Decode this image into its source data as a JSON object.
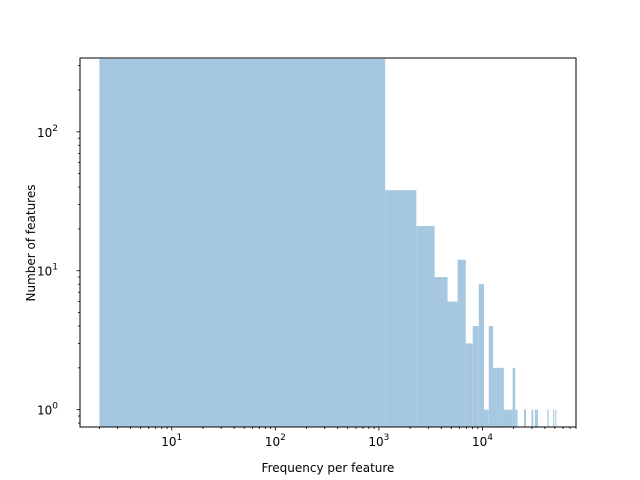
{
  "chart_data": {
    "type": "bar",
    "title": "",
    "xlabel": "Frequency per feature",
    "ylabel": "Number of features",
    "x_scale": "log",
    "y_scale": "log",
    "xlim": [
      1.3,
      80000
    ],
    "ylim": [
      0.75,
      340
    ],
    "grid": false,
    "bar_color": "#a5c8e0",
    "x_ticks": [
      {
        "value": 10,
        "base": "10",
        "exp": "1"
      },
      {
        "value": 100,
        "base": "10",
        "exp": "2"
      },
      {
        "value": 1000,
        "base": "10",
        "exp": "3"
      },
      {
        "value": 10000,
        "base": "10",
        "exp": "4"
      }
    ],
    "y_ticks": [
      {
        "value": 1,
        "base": "10",
        "exp": "0"
      },
      {
        "value": 10,
        "base": "10",
        "exp": "1"
      },
      {
        "value": 100,
        "base": "10",
        "exp": "2"
      }
    ],
    "bins": [
      {
        "x0": 2,
        "x1": 1150,
        "count": 335
      },
      {
        "x0": 1150,
        "x1": 2300,
        "count": 38
      },
      {
        "x0": 2300,
        "x1": 3450,
        "count": 21
      },
      {
        "x0": 3450,
        "x1": 4600,
        "count": 9
      },
      {
        "x0": 4600,
        "x1": 5750,
        "count": 6
      },
      {
        "x0": 5750,
        "x1": 6900,
        "count": 12
      },
      {
        "x0": 6900,
        "x1": 8050,
        "count": 3
      },
      {
        "x0": 8050,
        "x1": 9200,
        "count": 4
      },
      {
        "x0": 9200,
        "x1": 10350,
        "count": 8
      },
      {
        "x0": 10350,
        "x1": 11500,
        "count": 1
      },
      {
        "x0": 11500,
        "x1": 12650,
        "count": 4
      },
      {
        "x0": 12650,
        "x1": 13800,
        "count": 2
      },
      {
        "x0": 13800,
        "x1": 14950,
        "count": 2
      },
      {
        "x0": 14950,
        "x1": 16100,
        "count": 2
      },
      {
        "x0": 16100,
        "x1": 17250,
        "count": 1
      },
      {
        "x0": 17250,
        "x1": 18400,
        "count": 1
      },
      {
        "x0": 18400,
        "x1": 19550,
        "count": 1
      },
      {
        "x0": 19550,
        "x1": 20700,
        "count": 2
      },
      {
        "x0": 20700,
        "x1": 21850,
        "count": 1
      },
      {
        "x0": 25150,
        "x1": 26300,
        "count": 1
      },
      {
        "x0": 29750,
        "x1": 30900,
        "count": 1
      },
      {
        "x0": 32050,
        "x1": 33200,
        "count": 1
      },
      {
        "x0": 33200,
        "x1": 34350,
        "count": 1
      },
      {
        "x0": 42400,
        "x1": 43550,
        "count": 1
      },
      {
        "x0": 48150,
        "x1": 49300,
        "count": 1
      },
      {
        "x0": 50450,
        "x1": 51600,
        "count": 1
      }
    ]
  }
}
